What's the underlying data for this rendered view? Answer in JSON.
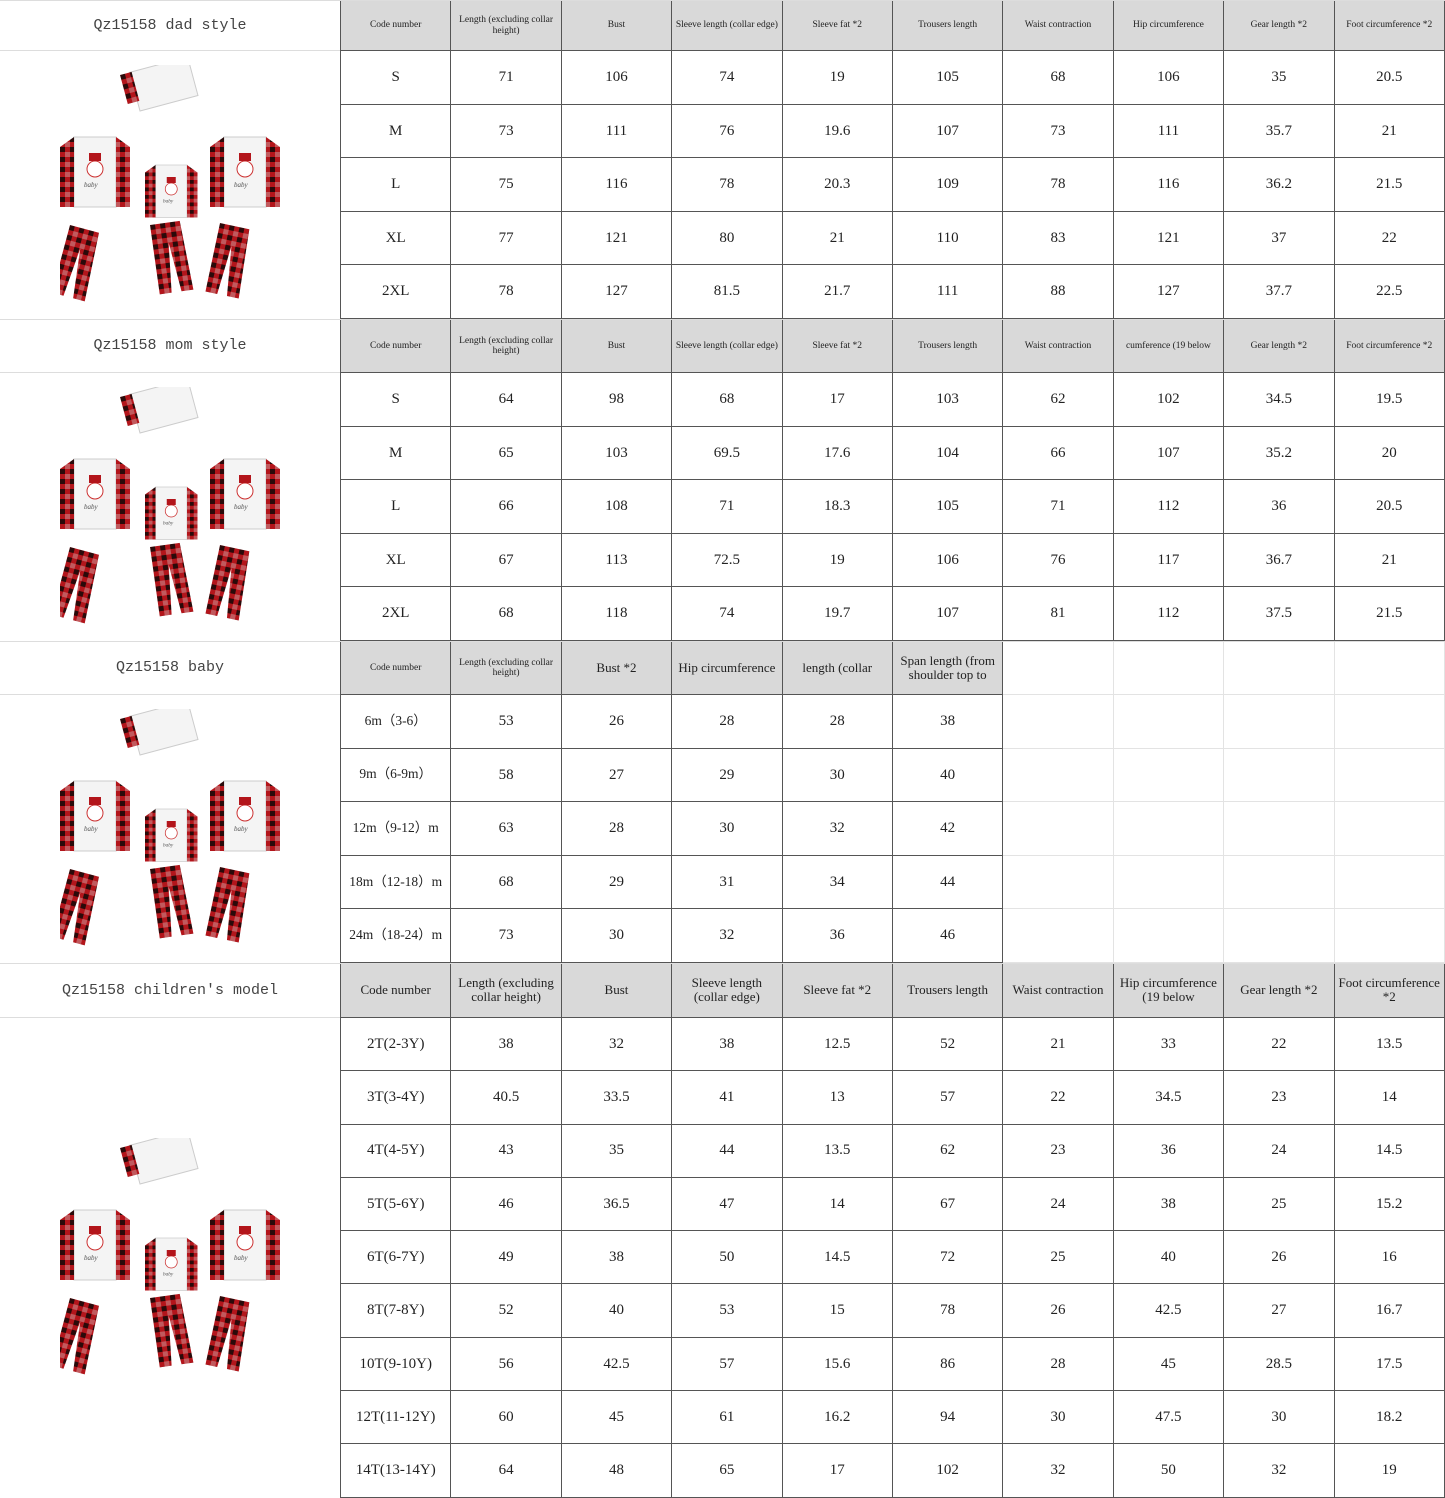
{
  "sections": [
    {
      "title": "Qz15158 dad style",
      "header_size": "small",
      "header_h": 50,
      "row_h": 53.6,
      "headers": [
        "Code number",
        "Length (excluding collar height)",
        "Bust",
        "Sleeve length (collar edge)",
        "Sleeve fat *2",
        "Trousers length",
        "Waist contraction",
        "Hip circumference",
        "Gear length *2",
        "Foot circumference *2"
      ],
      "rows": [
        [
          "S",
          "71",
          "106",
          "74",
          "19",
          "105",
          "68",
          "106",
          "35",
          "20.5"
        ],
        [
          "M",
          "73",
          "111",
          "76",
          "19.6",
          "107",
          "73",
          "111",
          "35.7",
          "21"
        ],
        [
          "L",
          "75",
          "116",
          "78",
          "20.3",
          "109",
          "78",
          "116",
          "36.2",
          "21.5"
        ],
        [
          "XL",
          "77",
          "121",
          "80",
          "21",
          "110",
          "83",
          "121",
          "37",
          "22"
        ],
        [
          "2XL",
          "78",
          "127",
          "81.5",
          "21.7",
          "111",
          "88",
          "127",
          "37.7",
          "22.5"
        ]
      ]
    },
    {
      "title": "Qz15158 mom style",
      "header_size": "small",
      "header_h": 53,
      "row_h": 53.6,
      "headers": [
        "Code number",
        "Length (excluding collar height)",
        "Bust",
        "Sleeve length (collar edge)",
        "Sleeve fat *2",
        "Trousers length",
        "Waist contraction",
        "cumference (19 below",
        "Gear length *2",
        "Foot circumference *2"
      ],
      "rows": [
        [
          "S",
          "64",
          "98",
          "68",
          "17",
          "103",
          "62",
          "102",
          "34.5",
          "19.5"
        ],
        [
          "M",
          "65",
          "103",
          "69.5",
          "17.6",
          "104",
          "66",
          "107",
          "35.2",
          "20"
        ],
        [
          "L",
          "66",
          "108",
          "71",
          "18.3",
          "105",
          "71",
          "112",
          "36",
          "20.5"
        ],
        [
          "XL",
          "67",
          "113",
          "72.5",
          "19",
          "106",
          "76",
          "117",
          "36.7",
          "21"
        ],
        [
          "2XL",
          "68",
          "118",
          "74",
          "19.7",
          "107",
          "81",
          "112",
          "37.5",
          "21.5"
        ]
      ]
    },
    {
      "title": "Qz15158 baby",
      "header_size": "mixed",
      "header_h": 53,
      "row_h": 53.6,
      "headers": [
        "Code number",
        "Length (excluding collar height)",
        "Bust *2",
        "Hip circumference",
        "length (collar",
        "Span length (from shoulder top to"
      ],
      "rows": [
        [
          "6m（3-6）",
          "53",
          "26",
          "28",
          "28",
          "38"
        ],
        [
          "9m（6-9m）",
          "58",
          "27",
          "29",
          "30",
          "40"
        ],
        [
          "12m（9-12）m",
          "63",
          "28",
          "30",
          "32",
          "42"
        ],
        [
          "18m（12-18）m",
          "68",
          "29",
          "31",
          "34",
          "44"
        ],
        [
          "24m（18-24）m",
          "73",
          "30",
          "32",
          "36",
          "46"
        ]
      ]
    },
    {
      "title": "Qz15158 children's model",
      "header_size": "big",
      "header_h": 54,
      "row_h": 53.3,
      "headers": [
        "Code number",
        "Length (excluding collar height)",
        "Bust",
        "Sleeve length (collar edge)",
        "Sleeve fat *2",
        "Trousers length",
        "Waist contraction",
        "Hip circumference (19 below",
        "Gear length *2",
        "Foot circumference *2"
      ],
      "rows": [
        [
          "2T(2-3Y)",
          "38",
          "32",
          "38",
          "12.5",
          "52",
          "21",
          "33",
          "22",
          "13.5"
        ],
        [
          "3T(3-4Y)",
          "40.5",
          "33.5",
          "41",
          "13",
          "57",
          "22",
          "34.5",
          "23",
          "14"
        ],
        [
          "4T(4-5Y)",
          "43",
          "35",
          "44",
          "13.5",
          "62",
          "23",
          "36",
          "24",
          "14.5"
        ],
        [
          "5T(5-6Y)",
          "46",
          "36.5",
          "47",
          "14",
          "67",
          "24",
          "38",
          "25",
          "15.2"
        ],
        [
          "6T(6-7Y)",
          "49",
          "38",
          "50",
          "14.5",
          "72",
          "25",
          "40",
          "26",
          "16"
        ],
        [
          "8T(7-8Y)",
          "52",
          "40",
          "53",
          "15",
          "78",
          "26",
          "42.5",
          "27",
          "16.7"
        ],
        [
          "10T(9-10Y)",
          "56",
          "42.5",
          "57",
          "15.6",
          "86",
          "28",
          "45",
          "28.5",
          "17.5"
        ],
        [
          "12T(11-12Y)",
          "60",
          "45",
          "61",
          "16.2",
          "94",
          "30",
          "47.5",
          "30",
          "18.2"
        ],
        [
          "14T(13-14Y)",
          "64",
          "48",
          "65",
          "17",
          "102",
          "32",
          "50",
          "32",
          "19"
        ]
      ]
    }
  ],
  "colors": {
    "header_bg": "#d9d9d9",
    "plaid_red": "#b3151b",
    "plaid_dark": "#2a0a0a"
  },
  "icons": {
    "product": "family-pajama-set-image"
  }
}
